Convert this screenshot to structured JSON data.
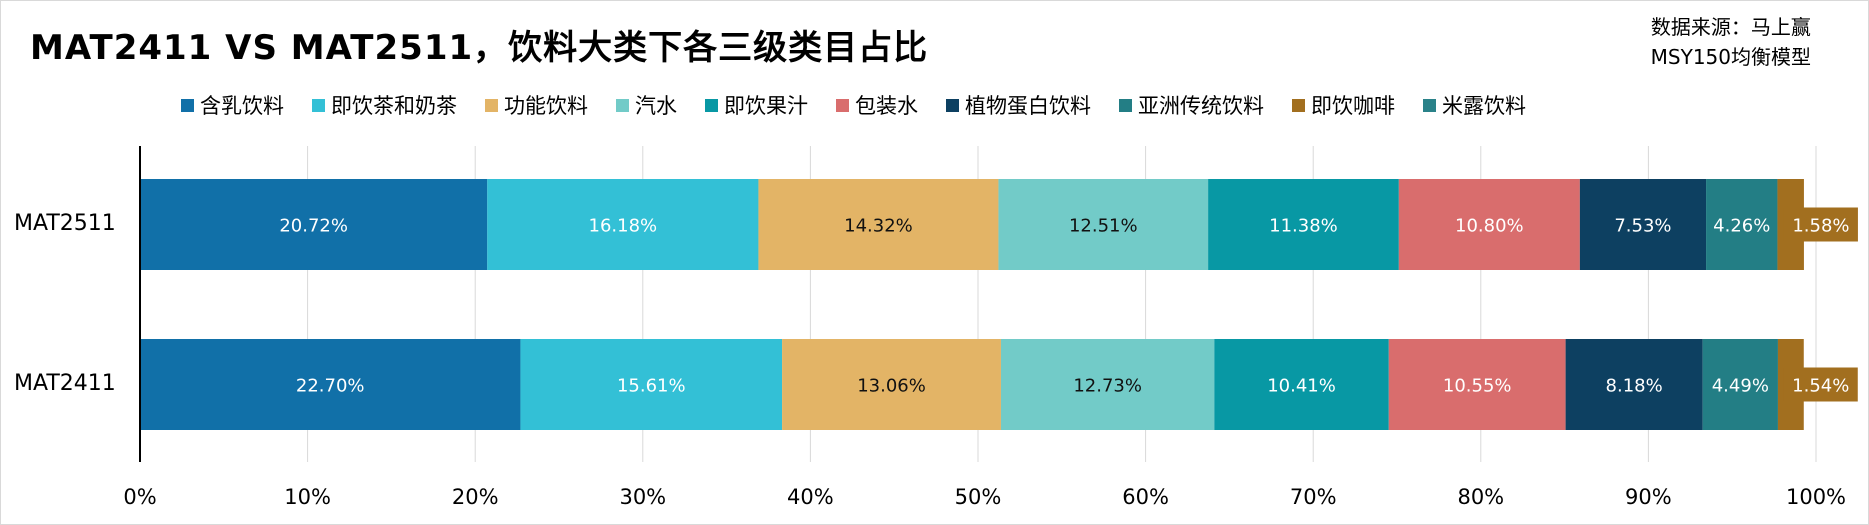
{
  "title": "MAT2411 VS MAT2511，饮料大类下各三级类目占比",
  "source": {
    "line1": "数据来源：马上赢",
    "line2": "MSY150均衡模型"
  },
  "chart_data": {
    "type": "bar",
    "orientation": "horizontal",
    "stacked": "100%",
    "categories": [
      "MAT2511",
      "MAT2411"
    ],
    "series": [
      {
        "name": "含乳饮料",
        "color": "#1170A8",
        "values": [
          20.72,
          22.7
        ],
        "labels": [
          "20.72%",
          "22.70%"
        ]
      },
      {
        "name": "即饮茶和奶茶",
        "color": "#33C0D6",
        "values": [
          16.18,
          15.61
        ],
        "labels": [
          "16.18%",
          "15.61%"
        ]
      },
      {
        "name": "功能饮料",
        "color": "#E3B466",
        "values": [
          14.32,
          13.06
        ],
        "labels": [
          "14.32%",
          "13.06%"
        ]
      },
      {
        "name": "汽水",
        "color": "#72CBC8",
        "values": [
          12.51,
          12.73
        ],
        "labels": [
          "12.51%",
          "12.73%"
        ]
      },
      {
        "name": "即饮果汁",
        "color": "#0898A4",
        "values": [
          11.38,
          10.41
        ],
        "labels": [
          "11.38%",
          "10.41%"
        ]
      },
      {
        "name": "包装水",
        "color": "#D96D6D",
        "values": [
          10.8,
          10.55
        ],
        "labels": [
          "10.80%",
          "10.55%"
        ]
      },
      {
        "name": "植物蛋白饮料",
        "color": "#0D4061",
        "values": [
          7.53,
          8.18
        ],
        "labels": [
          "7.53%",
          "8.18%"
        ]
      },
      {
        "name": "亚洲传统饮料",
        "color": "#237E85",
        "values": [
          4.26,
          4.49
        ],
        "labels": [
          "4.26%",
          "4.49%"
        ]
      },
      {
        "name": "即饮咖啡",
        "color": "#A26F1F",
        "values": [
          1.58,
          1.54
        ],
        "labels": [
          "1.58%",
          "1.54%"
        ]
      },
      {
        "name": "米露饮料",
        "color": "#2A8289",
        "values": [
          0.0,
          0.0
        ],
        "labels": [
          "",
          ""
        ]
      }
    ],
    "xlim": [
      0,
      100
    ],
    "x_ticks": [
      "0%",
      "10%",
      "20%",
      "30%",
      "40%",
      "50%",
      "60%",
      "70%",
      "80%",
      "90%",
      "100%"
    ],
    "grid": "vertical",
    "legend_position": "top"
  }
}
